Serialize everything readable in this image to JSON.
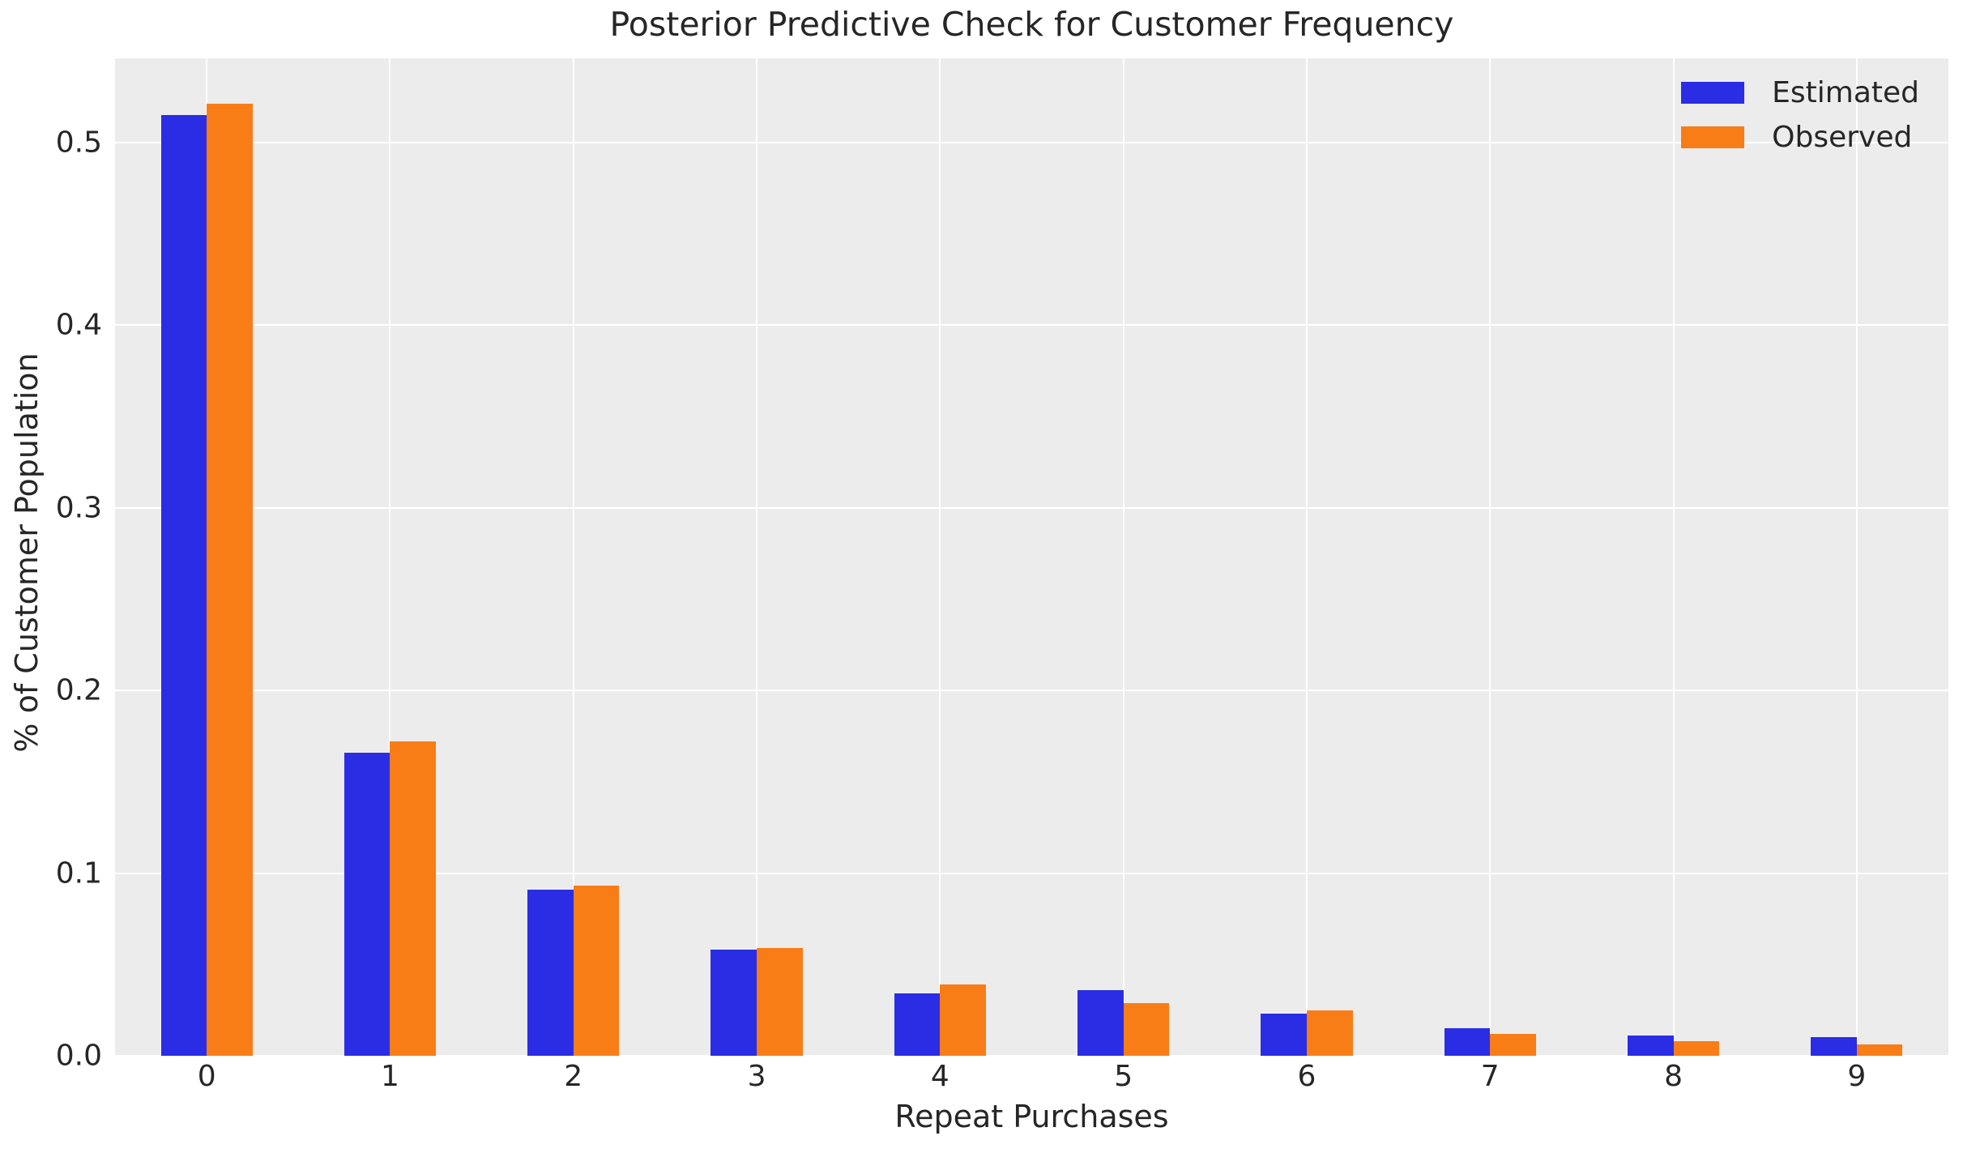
{
  "chart_data": {
    "type": "bar",
    "title": "Posterior Predictive Check for Customer Frequency",
    "xlabel": "Repeat Purchases",
    "ylabel": "% of Customer Population",
    "categories": [
      "0",
      "1",
      "2",
      "3",
      "4",
      "5",
      "6",
      "7",
      "8",
      "9"
    ],
    "series": [
      {
        "name": "Estimated",
        "color": "#2a2de4",
        "values": [
          0.515,
          0.166,
          0.091,
          0.058,
          0.034,
          0.036,
          0.023,
          0.015,
          0.011,
          0.01
        ]
      },
      {
        "name": "Observed",
        "color": "#f87d17",
        "values": [
          0.521,
          0.172,
          0.093,
          0.059,
          0.039,
          0.029,
          0.025,
          0.012,
          0.008,
          0.006
        ]
      }
    ],
    "ylim": [
      0,
      0.546
    ],
    "yticks": [
      0.0,
      0.1,
      0.2,
      0.3,
      0.4,
      0.5
    ],
    "ytick_labels": [
      "0.0",
      "0.1",
      "0.2",
      "0.3",
      "0.4",
      "0.5"
    ],
    "grid": true,
    "legend_position": "upper right",
    "plot_background_color": "#ececec",
    "grid_color": "#ffffff",
    "text_color": "#262626"
  }
}
